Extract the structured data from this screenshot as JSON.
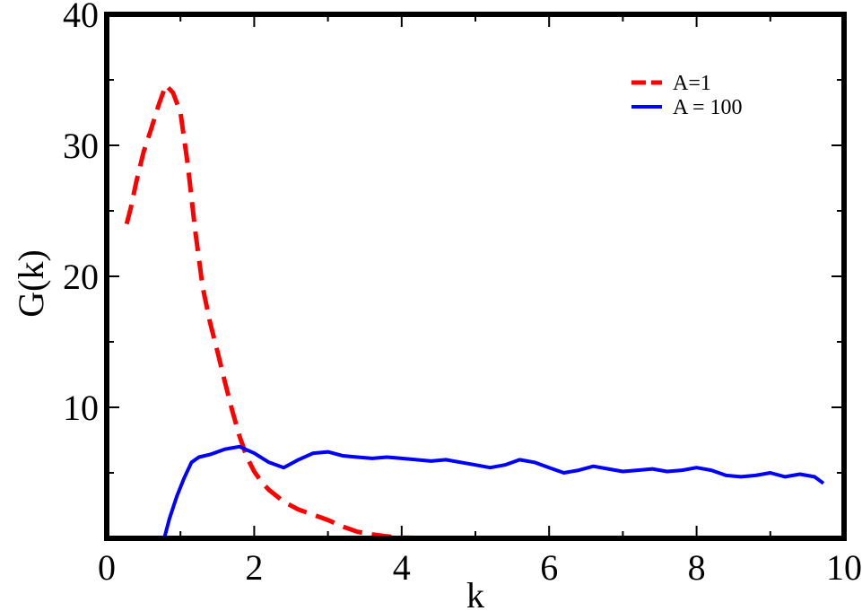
{
  "chart_data": {
    "type": "line",
    "xlabel": "k",
    "ylabel": "G(k)",
    "xlim": [
      0,
      10
    ],
    "ylim": [
      0,
      40
    ],
    "xticks": [
      0,
      2,
      4,
      6,
      8,
      10
    ],
    "yticks": [
      10,
      20,
      30,
      40
    ],
    "legend_position": "top-right",
    "grid": false,
    "series": [
      {
        "name": "A=1",
        "color": "#ff0000",
        "style": "dashed",
        "x": [
          0.27,
          0.33,
          0.4,
          0.5,
          0.6,
          0.7,
          0.8,
          0.9,
          1.0,
          1.1,
          1.2,
          1.3,
          1.4,
          1.5,
          1.6,
          1.7,
          1.8,
          1.9,
          2.0,
          2.1,
          2.2,
          2.4,
          2.6,
          2.8,
          3.0,
          3.2,
          3.4,
          3.6,
          3.8,
          4.0,
          4.3,
          4.6,
          5.0
        ],
        "y": [
          24.0,
          25.3,
          27.2,
          29.5,
          31.2,
          33.0,
          34.6,
          34.0,
          32.5,
          28.5,
          23.5,
          19.2,
          16.5,
          14.3,
          12.0,
          9.8,
          7.8,
          6.2,
          5.1,
          4.3,
          3.7,
          2.8,
          2.2,
          1.8,
          1.4,
          0.9,
          0.5,
          0.3,
          0.15,
          0.05,
          0.02,
          0.0,
          0.0
        ]
      },
      {
        "name": "A = 100",
        "color": "#0000ff",
        "style": "solid",
        "x": [
          0.78,
          0.85,
          0.95,
          1.05,
          1.15,
          1.25,
          1.4,
          1.6,
          1.8,
          2.0,
          2.2,
          2.4,
          2.6,
          2.8,
          3.0,
          3.2,
          3.4,
          3.6,
          3.8,
          4.0,
          4.2,
          4.4,
          4.6,
          4.8,
          5.0,
          5.2,
          5.4,
          5.6,
          5.8,
          6.0,
          6.2,
          6.4,
          6.6,
          6.8,
          7.0,
          7.2,
          7.4,
          7.6,
          7.8,
          8.0,
          8.2,
          8.4,
          8.6,
          8.8,
          9.0,
          9.2,
          9.4,
          9.6,
          9.72
        ],
        "y": [
          0.0,
          1.5,
          3.2,
          4.6,
          5.8,
          6.2,
          6.4,
          6.8,
          7.0,
          6.5,
          5.8,
          5.4,
          6.0,
          6.5,
          6.6,
          6.3,
          6.2,
          6.1,
          6.2,
          6.1,
          6.0,
          5.9,
          6.0,
          5.8,
          5.6,
          5.4,
          5.6,
          6.0,
          5.8,
          5.4,
          5.0,
          5.2,
          5.5,
          5.3,
          5.1,
          5.2,
          5.3,
          5.1,
          5.2,
          5.4,
          5.2,
          4.8,
          4.7,
          4.8,
          5.0,
          4.7,
          4.9,
          4.7,
          4.2
        ]
      }
    ]
  }
}
